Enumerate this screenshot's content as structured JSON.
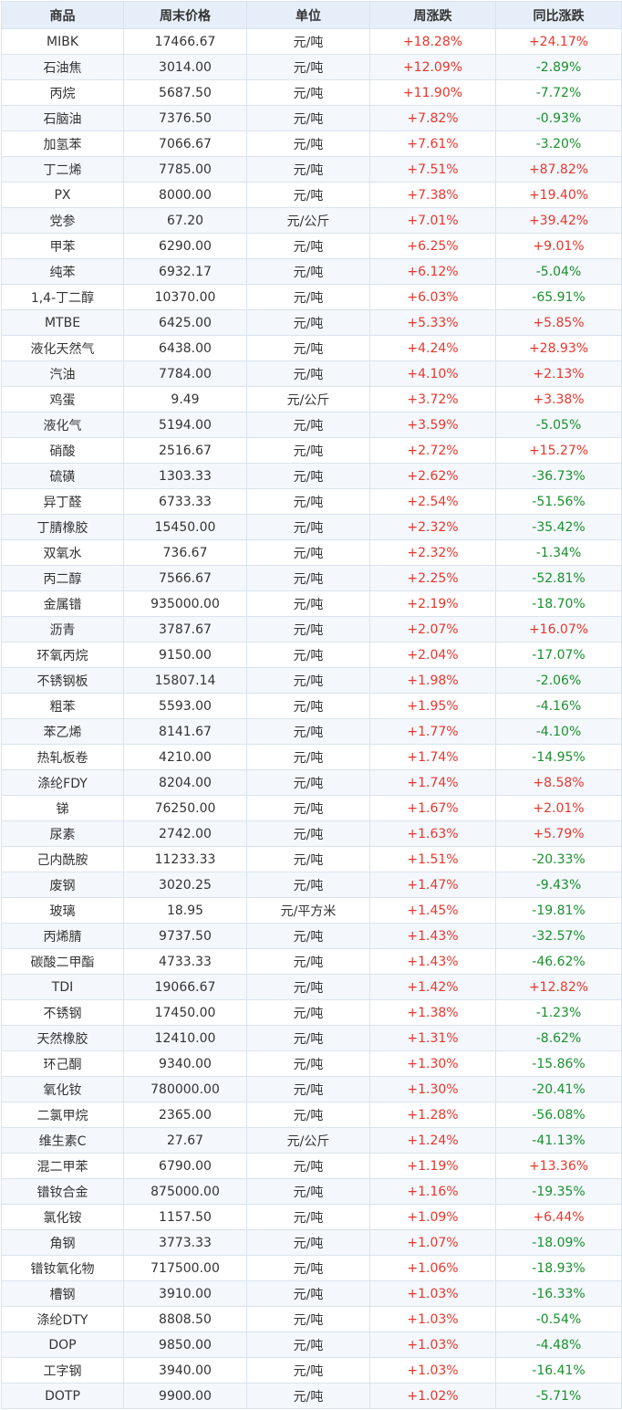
{
  "colors": {
    "up": "#e8362b",
    "down": "#1a8f2e",
    "header_bg": "#e6eff9"
  },
  "headers": [
    "商品",
    "周末价格",
    "单位",
    "周涨跌",
    "同比涨跌"
  ],
  "rows": [
    [
      "MIBK",
      "17466.67",
      "元/吨",
      "+18.28%",
      "+24.17%"
    ],
    [
      "石油焦",
      "3014.00",
      "元/吨",
      "+12.09%",
      "-2.89%"
    ],
    [
      "丙烷",
      "5687.50",
      "元/吨",
      "+11.90%",
      "-7.72%"
    ],
    [
      "石脑油",
      "7376.50",
      "元/吨",
      "+7.82%",
      "-0.93%"
    ],
    [
      "加氢苯",
      "7066.67",
      "元/吨",
      "+7.61%",
      "-3.20%"
    ],
    [
      "丁二烯",
      "7785.00",
      "元/吨",
      "+7.51%",
      "+87.82%"
    ],
    [
      "PX",
      "8000.00",
      "元/吨",
      "+7.38%",
      "+19.40%"
    ],
    [
      "党参",
      "67.20",
      "元/公斤",
      "+7.01%",
      "+39.42%"
    ],
    [
      "甲苯",
      "6290.00",
      "元/吨",
      "+6.25%",
      "+9.01%"
    ],
    [
      "纯苯",
      "6932.17",
      "元/吨",
      "+6.12%",
      "-5.04%"
    ],
    [
      "1,4-丁二醇",
      "10370.00",
      "元/吨",
      "+6.03%",
      "-65.91%"
    ],
    [
      "MTBE",
      "6425.00",
      "元/吨",
      "+5.33%",
      "+5.85%"
    ],
    [
      "液化天然气",
      "6438.00",
      "元/吨",
      "+4.24%",
      "+28.93%"
    ],
    [
      "汽油",
      "7784.00",
      "元/吨",
      "+4.10%",
      "+2.13%"
    ],
    [
      "鸡蛋",
      "9.49",
      "元/公斤",
      "+3.72%",
      "+3.38%"
    ],
    [
      "液化气",
      "5194.00",
      "元/吨",
      "+3.59%",
      "-5.05%"
    ],
    [
      "硝酸",
      "2516.67",
      "元/吨",
      "+2.72%",
      "+15.27%"
    ],
    [
      "硫磺",
      "1303.33",
      "元/吨",
      "+2.62%",
      "-36.73%"
    ],
    [
      "异丁醛",
      "6733.33",
      "元/吨",
      "+2.54%",
      "-51.56%"
    ],
    [
      "丁腈橡胶",
      "15450.00",
      "元/吨",
      "+2.32%",
      "-35.42%"
    ],
    [
      "双氧水",
      "736.67",
      "元/吨",
      "+2.32%",
      "-1.34%"
    ],
    [
      "丙二醇",
      "7566.67",
      "元/吨",
      "+2.25%",
      "-52.81%"
    ],
    [
      "金属镨",
      "935000.00",
      "元/吨",
      "+2.19%",
      "-18.70%"
    ],
    [
      "沥青",
      "3787.67",
      "元/吨",
      "+2.07%",
      "+16.07%"
    ],
    [
      "环氧丙烷",
      "9150.00",
      "元/吨",
      "+2.04%",
      "-17.07%"
    ],
    [
      "不锈钢板",
      "15807.14",
      "元/吨",
      "+1.98%",
      "-2.06%"
    ],
    [
      "粗苯",
      "5593.00",
      "元/吨",
      "+1.95%",
      "-4.16%"
    ],
    [
      "苯乙烯",
      "8141.67",
      "元/吨",
      "+1.77%",
      "-4.10%"
    ],
    [
      "热轧板卷",
      "4210.00",
      "元/吨",
      "+1.74%",
      "-14.95%"
    ],
    [
      "涤纶FDY",
      "8204.00",
      "元/吨",
      "+1.74%",
      "+8.58%"
    ],
    [
      "锑",
      "76250.00",
      "元/吨",
      "+1.67%",
      "+2.01%"
    ],
    [
      "尿素",
      "2742.00",
      "元/吨",
      "+1.63%",
      "+5.79%"
    ],
    [
      "己内酰胺",
      "11233.33",
      "元/吨",
      "+1.51%",
      "-20.33%"
    ],
    [
      "废钢",
      "3020.25",
      "元/吨",
      "+1.47%",
      "-9.43%"
    ],
    [
      "玻璃",
      "18.95",
      "元/平方米",
      "+1.45%",
      "-19.81%"
    ],
    [
      "丙烯腈",
      "9737.50",
      "元/吨",
      "+1.43%",
      "-32.57%"
    ],
    [
      "碳酸二甲酯",
      "4733.33",
      "元/吨",
      "+1.43%",
      "-46.62%"
    ],
    [
      "TDI",
      "19066.67",
      "元/吨",
      "+1.42%",
      "+12.82%"
    ],
    [
      "不锈钢",
      "17450.00",
      "元/吨",
      "+1.38%",
      "-1.23%"
    ],
    [
      "天然橡胶",
      "12410.00",
      "元/吨",
      "+1.31%",
      "-8.62%"
    ],
    [
      "环己酮",
      "9340.00",
      "元/吨",
      "+1.30%",
      "-15.86%"
    ],
    [
      "氧化钕",
      "780000.00",
      "元/吨",
      "+1.30%",
      "-20.41%"
    ],
    [
      "二氯甲烷",
      "2365.00",
      "元/吨",
      "+1.28%",
      "-56.08%"
    ],
    [
      "维生素C",
      "27.67",
      "元/公斤",
      "+1.24%",
      "-41.13%"
    ],
    [
      "混二甲苯",
      "6790.00",
      "元/吨",
      "+1.19%",
      "+13.36%"
    ],
    [
      "镨钕合金",
      "875000.00",
      "元/吨",
      "+1.16%",
      "-19.35%"
    ],
    [
      "氯化铵",
      "1157.50",
      "元/吨",
      "+1.09%",
      "+6.44%"
    ],
    [
      "角钢",
      "3773.33",
      "元/吨",
      "+1.07%",
      "-18.09%"
    ],
    [
      "镨钕氧化物",
      "717500.00",
      "元/吨",
      "+1.06%",
      "-18.93%"
    ],
    [
      "槽钢",
      "3910.00",
      "元/吨",
      "+1.03%",
      "-16.33%"
    ],
    [
      "涤纶DTY",
      "8808.50",
      "元/吨",
      "+1.03%",
      "-0.54%"
    ],
    [
      "DOP",
      "9850.00",
      "元/吨",
      "+1.03%",
      "-4.48%"
    ],
    [
      "工字钢",
      "3940.00",
      "元/吨",
      "+1.03%",
      "-16.41%"
    ],
    [
      "DOTP",
      "9900.00",
      "元/吨",
      "+1.02%",
      "-5.71%"
    ]
  ]
}
